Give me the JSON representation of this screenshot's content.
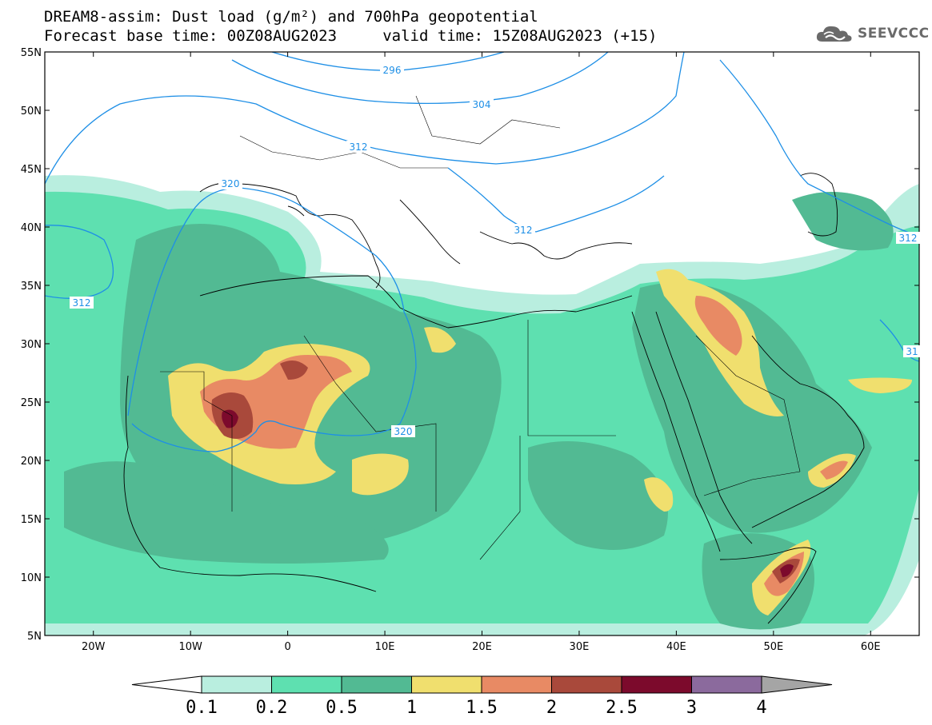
{
  "title": {
    "line1": "DREAM8-assim: Dust load (g/m²) and 700hPa geopotential",
    "line2": "Forecast base time: 00Z08AUG2023     valid time: 15Z08AUG2023 (+15)"
  },
  "logo": {
    "text": "SEEVCCC",
    "icon": "cloud-icon"
  },
  "map": {
    "lat_labels": [
      "55N",
      "50N",
      "45N",
      "40N",
      "35N",
      "30N",
      "25N",
      "20N",
      "15N",
      "10N",
      "5N"
    ],
    "lon_labels": [
      "20W",
      "10W",
      "0",
      "10E",
      "20E",
      "30E",
      "40E",
      "50E",
      "60E"
    ],
    "contour_labels": [
      "296",
      "304",
      "312",
      "320",
      "320",
      "312",
      "312",
      "312",
      "31"
    ],
    "contour_color": "#1e8fe6"
  },
  "colorbar": {
    "labels": [
      "0.1",
      "0.2",
      "0.5",
      "1",
      "1.5",
      "2",
      "2.5",
      "3",
      "4"
    ],
    "colors": [
      "#b9eedf",
      "#5ee0b0",
      "#52ba93",
      "#f0df6e",
      "#e88a64",
      "#a9493b",
      "#7c0a2c",
      "#8b6a9d"
    ],
    "under_color": "#ffffff",
    "over_color": "#a5a5a5"
  }
}
